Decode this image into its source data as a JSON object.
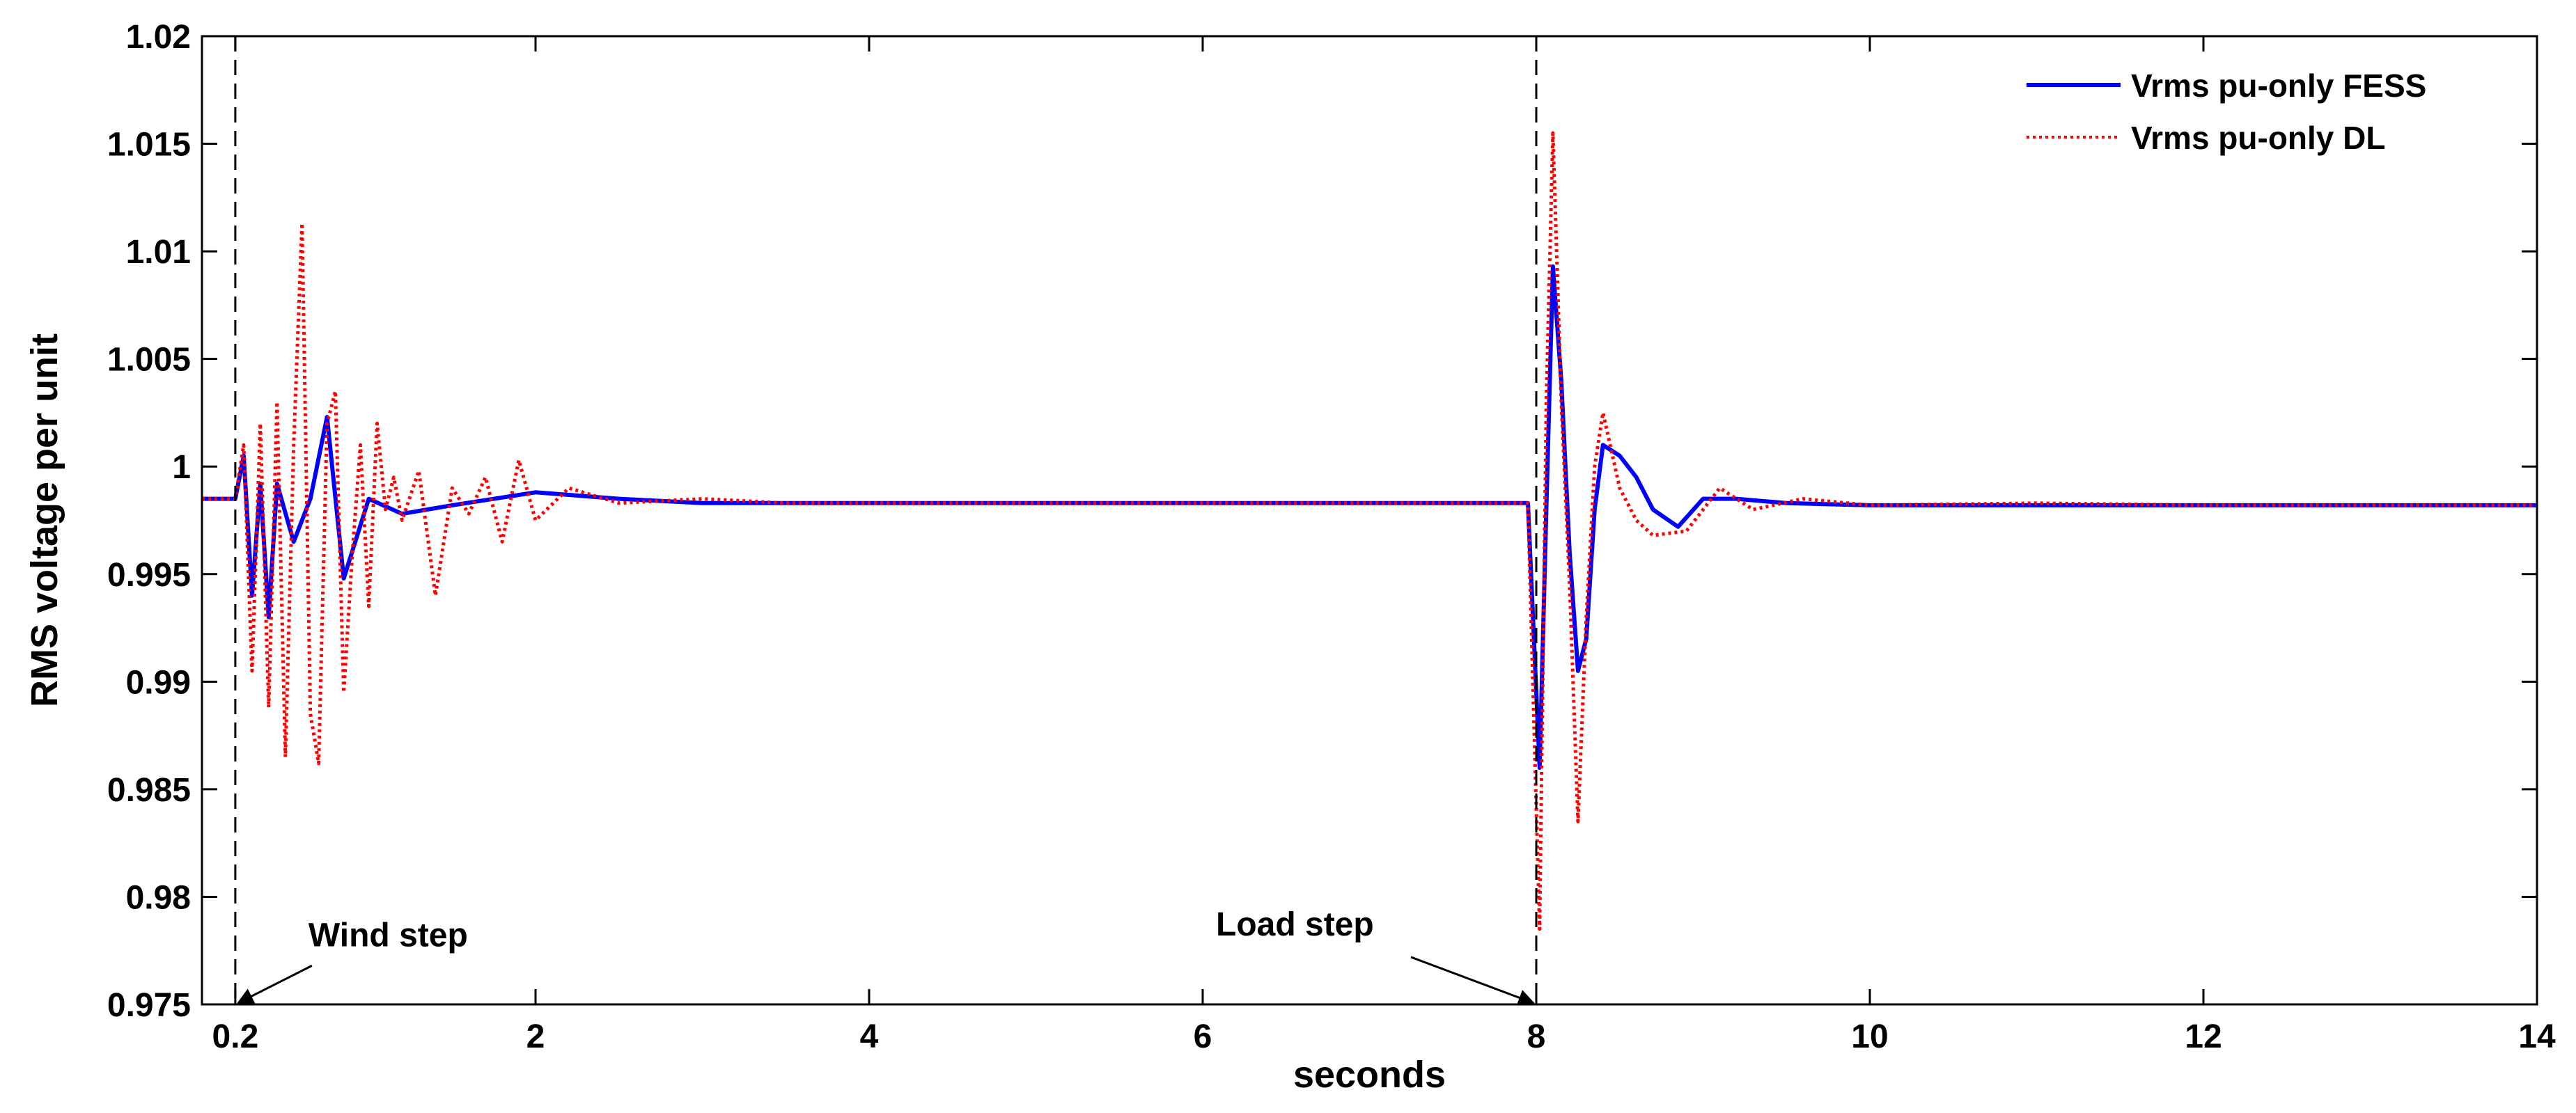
{
  "chart_data": {
    "type": "line",
    "title": "",
    "xlabel": "seconds",
    "ylabel": "RMS voltage per unit",
    "xlim": [
      0,
      14
    ],
    "ylim": [
      0.975,
      1.02
    ],
    "grid": false,
    "legend_position": "top-right",
    "x_ticks": [
      0.2,
      2,
      4,
      6,
      8,
      10,
      12,
      14
    ],
    "x_tick_labels": [
      "0.2",
      "2",
      "4",
      "6",
      "8",
      "10",
      "12",
      "14"
    ],
    "y_ticks": [
      0.975,
      0.98,
      0.985,
      0.99,
      0.995,
      1.0,
      1.005,
      1.01,
      1.015,
      1.02
    ],
    "y_tick_labels": [
      "0.975",
      "0.98",
      "0.985",
      "0.99",
      "0.995",
      "1",
      "1.005",
      "1.01",
      "1.015",
      "1.02"
    ],
    "series": [
      {
        "name": "Vrms pu-only FESS",
        "color": "#0000ff",
        "style": "solid",
        "x": [
          0,
          0.2,
          0.25,
          0.3,
          0.35,
          0.4,
          0.45,
          0.55,
          0.65,
          0.75,
          0.85,
          1.0,
          1.2,
          1.5,
          2.0,
          2.5,
          3.0,
          3.5,
          4,
          5,
          6,
          7,
          7.95,
          8.02,
          8.06,
          8.1,
          8.15,
          8.2,
          8.25,
          8.3,
          8.35,
          8.4,
          8.5,
          8.6,
          8.7,
          8.85,
          9.0,
          9.2,
          9.5,
          10,
          11,
          12,
          13,
          14
        ],
        "y": [
          0.9985,
          0.9985,
          1.0005,
          0.994,
          0.9992,
          0.993,
          0.9992,
          0.9965,
          0.9985,
          1.0023,
          0.9948,
          0.9985,
          0.9978,
          0.9982,
          0.9988,
          0.9985,
          0.9983,
          0.9983,
          0.9983,
          0.9983,
          0.9983,
          0.9983,
          0.9983,
          0.986,
          0.998,
          1.0093,
          1.004,
          0.996,
          0.9905,
          0.992,
          0.998,
          1.001,
          1.0005,
          0.9995,
          0.998,
          0.9972,
          0.9985,
          0.9985,
          0.9983,
          0.9982,
          0.9982,
          0.9982,
          0.9982,
          0.9982
        ]
      },
      {
        "name": "Vrms pu-only DL",
        "color": "#ff0000",
        "style": "dotted",
        "x": [
          0,
          0.2,
          0.25,
          0.3,
          0.35,
          0.4,
          0.45,
          0.5,
          0.55,
          0.6,
          0.65,
          0.7,
          0.75,
          0.8,
          0.85,
          0.9,
          0.95,
          1.0,
          1.05,
          1.1,
          1.15,
          1.2,
          1.3,
          1.4,
          1.5,
          1.6,
          1.7,
          1.8,
          1.9,
          2.0,
          2.2,
          2.5,
          3.0,
          3.5,
          4,
          5,
          6,
          7,
          7.95,
          8.02,
          8.06,
          8.1,
          8.15,
          8.2,
          8.25,
          8.3,
          8.35,
          8.4,
          8.5,
          8.6,
          8.7,
          8.9,
          9.1,
          9.3,
          9.6,
          10,
          11,
          12,
          13,
          14
        ],
        "y": [
          0.9985,
          0.9985,
          1.001,
          0.9905,
          1.002,
          0.9888,
          1.003,
          0.9865,
          1.001,
          1.0113,
          0.9885,
          0.9862,
          1.002,
          1.0035,
          0.9895,
          0.9958,
          1.001,
          0.9935,
          1.002,
          0.998,
          0.9995,
          0.9975,
          0.9998,
          0.994,
          0.999,
          0.9978,
          0.9995,
          0.9965,
          1.0003,
          0.9975,
          0.999,
          0.9983,
          0.9985,
          0.9983,
          0.9983,
          0.9983,
          0.9983,
          0.9983,
          0.9983,
          0.9785,
          1.003,
          1.0155,
          1.003,
          0.9945,
          0.9835,
          0.993,
          1.0,
          1.0025,
          0.999,
          0.9975,
          0.9968,
          0.997,
          0.999,
          0.998,
          0.9985,
          0.9982,
          0.9983,
          0.9982,
          0.9982,
          0.9982
        ]
      }
    ],
    "annotations": [
      {
        "text": "Wind step",
        "x": 0.2,
        "y": 0.975
      },
      {
        "text": "Load step",
        "x": 8.0,
        "y": 0.975
      }
    ],
    "vertical_markers": [
      0.2,
      8.0
    ]
  }
}
